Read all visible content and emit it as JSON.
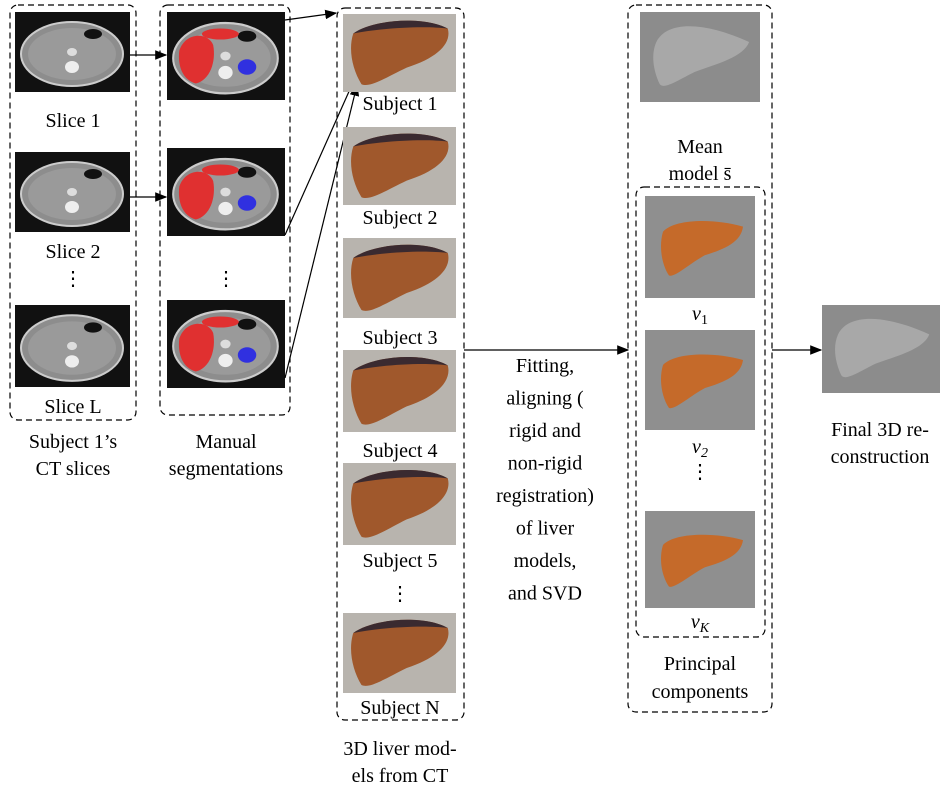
{
  "columns": {
    "ct_slices": {
      "slices": [
        "Slice 1",
        "Slice 2",
        "Slice L"
      ],
      "caption": [
        "Subject 1’s",
        "CT slices"
      ]
    },
    "segmentations": {
      "caption": [
        "Manual",
        "segmentations"
      ]
    },
    "liver_models": {
      "subjects": [
        "Subject 1",
        "Subject 2",
        "Subject 3",
        "Subject 4",
        "Subject 5",
        "Subject N"
      ],
      "caption": [
        "3D liver mod-",
        "els from CT"
      ]
    },
    "process": {
      "lines": [
        "Fitting,",
        "aligning (",
        "rigid and",
        "non-rigid",
        "registration)",
        "of liver",
        "models,",
        "and SVD"
      ]
    },
    "statistical_model": {
      "mean": [
        "Mean",
        "model s̄"
      ],
      "components": [
        {
          "base": "v",
          "sub": "1"
        },
        {
          "base": "v",
          "sub": "2"
        },
        {
          "base": "v",
          "sub": "K"
        }
      ],
      "caption": [
        "Principal",
        "components"
      ]
    },
    "result": {
      "caption": [
        "Final 3D re-",
        "construction"
      ]
    }
  }
}
